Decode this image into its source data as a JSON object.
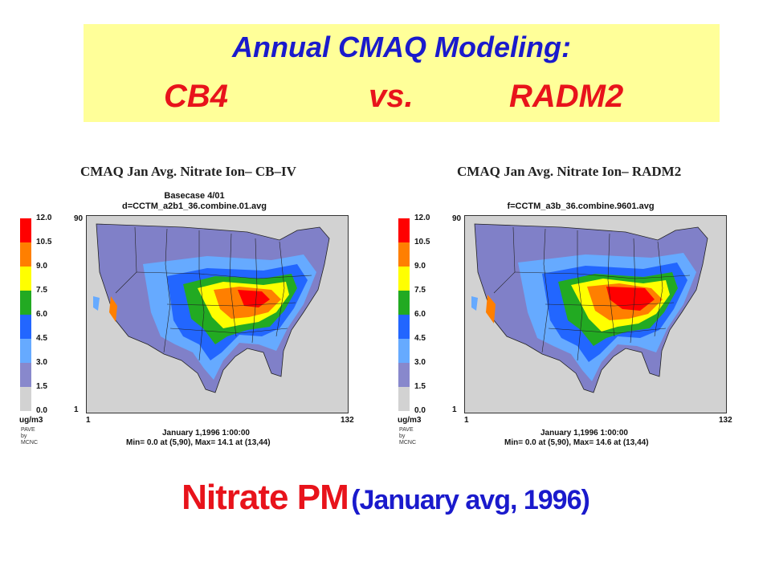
{
  "slide": {
    "title_line1": "Annual CMAQ Modeling:",
    "title_cb4": "CB4",
    "title_vs": "vs.",
    "title_radm2": "RADM2",
    "caption_main": "Nitrate PM",
    "caption_paren": "(January avg, 1996)"
  },
  "colors": {
    "title_blue": "#1a1acc",
    "title_red": "#e8131b",
    "title_bg": "#ffff99"
  },
  "legend": {
    "values": [
      "12.0",
      "10.5",
      "9.0",
      "7.5",
      "6.0",
      "4.5",
      "3.0",
      "1.5",
      "0.0"
    ],
    "colors": [
      "#ff0000",
      "#ff7f00",
      "#ffff00",
      "#22aa22",
      "#2266ff",
      "#66aaff",
      "#8888cc",
      "#d2d2d2"
    ],
    "unit": "ug/m3",
    "logo_line1": "PAVE",
    "logo_line2": "by",
    "logo_line3": "MCNC"
  },
  "panels": [
    {
      "title": "CMAQ Jan Avg. Nitrate Ion– CB–IV",
      "subtitle1": "Basecase 4/01",
      "subtitle2": "d=CCTM_a2b1_36.combine.01.avg",
      "y_top": "90",
      "y_bottom": "1",
      "x_left": "1",
      "x_right": "132",
      "date": "January 1,1996 1:00:00",
      "minmax": "Min=  0.0 at (5,90), Max= 14.1 at (13,44)"
    },
    {
      "title": "CMAQ Jan Avg. Nitrate Ion– RADM2",
      "subtitle1": "",
      "subtitle2": "f=CCTM_a3b_36.combine.9601.avg",
      "y_top": "90",
      "y_bottom": "1",
      "x_left": "1",
      "x_right": "132",
      "date": "January 1,1996 1:00:00",
      "minmax": "Min=  0.0 at (5,90), Max= 14.6 at (13,44)"
    }
  ]
}
